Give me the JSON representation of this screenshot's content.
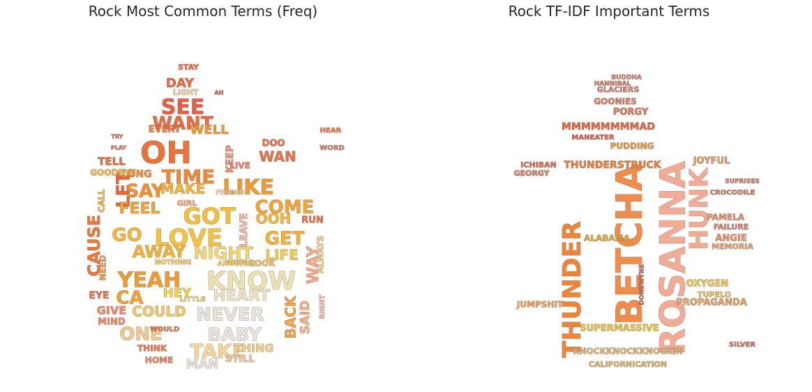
{
  "panels": [
    {
      "title": "Rock Most Common Terms (Freq)",
      "words": [
        {
          "t": "OH",
          "c": "#e8743a"
        },
        {
          "t": "SEE",
          "c": "#e85d46"
        },
        {
          "t": "WANT",
          "c": "#ea6b3f"
        },
        {
          "t": "DAY",
          "c": "#e66a44"
        },
        {
          "t": "TIME",
          "c": "#ee8a36"
        },
        {
          "t": "LIKE",
          "c": "#ef9a33"
        },
        {
          "t": "GOT",
          "c": "#f3bf3a"
        },
        {
          "t": "LOVE",
          "c": "#f4c23e"
        },
        {
          "t": "COME",
          "c": "#f2a534"
        },
        {
          "t": "KNOW",
          "c": "#ede0b0"
        },
        {
          "t": "YEAH",
          "c": "#ee9a35"
        },
        {
          "t": "NEVER",
          "c": "#e9e4da"
        },
        {
          "t": "BABY",
          "c": "#e8e4dc"
        },
        {
          "t": "TAKE",
          "c": "#f3d79a"
        },
        {
          "t": "CAUSE",
          "c": "#e97a3b"
        },
        {
          "t": "GET",
          "c": "#f3b13a"
        },
        {
          "t": "WAY",
          "c": "#f2a98b"
        },
        {
          "t": "BACK",
          "c": "#eea34a"
        },
        {
          "t": "SAID",
          "c": "#eeb28a"
        },
        {
          "t": "ONE",
          "c": "#f0c98d"
        },
        {
          "t": "COULD",
          "c": "#f2c76a"
        },
        {
          "t": "GIVE",
          "c": "#ec8a6a"
        },
        {
          "t": "LET",
          "c": "#e8663f"
        },
        {
          "t": "SAY",
          "c": "#f09234"
        },
        {
          "t": "FEEL",
          "c": "#f0a336"
        },
        {
          "t": "MAKE",
          "c": "#f2b23a"
        },
        {
          "t": "WAN",
          "c": "#e67447"
        },
        {
          "t": "NIGHT",
          "c": "#f3d66a"
        },
        {
          "t": "HEART",
          "c": "#ede2c4"
        },
        {
          "t": "LIFE",
          "c": "#f4c94f"
        },
        {
          "t": "OOH",
          "c": "#f2b43c"
        },
        {
          "t": "TELL",
          "c": "#e8703f"
        },
        {
          "t": "WELL",
          "c": "#ee9a35"
        },
        {
          "t": "EVERY",
          "c": "#ec7a3c"
        },
        {
          "t": "MAN",
          "c": "#e8e3da"
        },
        {
          "t": "GO",
          "c": "#f3b83a"
        },
        {
          "t": "AWAY",
          "c": "#f1b23a"
        },
        {
          "t": "HEY",
          "c": "#f4d04a"
        },
        {
          "t": "CA",
          "c": "#f0a234"
        },
        {
          "t": "THING",
          "c": "#f2cf84"
        },
        {
          "t": "STILL",
          "c": "#efc8a0"
        },
        {
          "t": "RUN",
          "c": "#eb6f3e"
        },
        {
          "t": "EYE",
          "c": "#eb6f48"
        },
        {
          "t": "MIND",
          "c": "#eb8a68"
        },
        {
          "t": "NEED",
          "c": "#f09a50"
        },
        {
          "t": "LONG",
          "c": "#ec8a3a"
        },
        {
          "t": "DOO",
          "c": "#e8704a"
        },
        {
          "t": "STAY",
          "c": "#e8703f"
        },
        {
          "t": "KEEP",
          "c": "#ec8c70"
        },
        {
          "t": "THINK",
          "c": "#ea7a50"
        },
        {
          "t": "LOOK",
          "c": "#efb86a"
        },
        {
          "t": "ALWAYS",
          "c": "#f0d08a"
        },
        {
          "t": "RIGHT",
          "c": "#f2b6a0"
        },
        {
          "t": "LEAVE",
          "c": "#f1b4a0"
        },
        {
          "t": "GIRL",
          "c": "#f0a878"
        },
        {
          "t": "CALL",
          "c": "#f2b444"
        },
        {
          "t": "HOME",
          "c": "#ec8060"
        },
        {
          "t": "LIGHT",
          "c": "#f1d3a0"
        },
        {
          "t": "WOULD",
          "c": "#e87447"
        },
        {
          "t": "NOTHING",
          "c": "#f3c860"
        },
        {
          "t": "WORLD",
          "c": "#f2c65a"
        },
        {
          "t": "AROUND",
          "c": "#f2d27a"
        },
        {
          "t": "LITTLE",
          "c": "#f2d27a"
        },
        {
          "t": "FRIEND",
          "c": "#efd9b0"
        },
        {
          "t": "GOODBYE",
          "c": "#f2b444"
        },
        {
          "t": "LIVE",
          "c": "#eb8462"
        },
        {
          "t": "HEAR",
          "c": "#e97650"
        },
        {
          "t": "WORD",
          "c": "#d67a6c"
        },
        {
          "t": "AH",
          "c": "#d06a5a"
        },
        {
          "t": "TRY",
          "c": "#cf7a6c"
        },
        {
          "t": "PLAY",
          "c": "#cf7a6c"
        },
        {
          "t": "STOP",
          "c": "#d28070"
        }
      ]
    },
    {
      "title": "Rock TF-IDF Important Terms",
      "words": [
        {
          "t": "ROSANNA",
          "c": "#f2ac96"
        },
        {
          "t": "BETCHA",
          "c": "#f08d4a"
        },
        {
          "t": "THUNDER",
          "c": "#ee8437"
        },
        {
          "t": "HUNK",
          "c": "#f2ac96"
        },
        {
          "t": "THUNDERSTRUCK",
          "c": "#ec7c3e"
        },
        {
          "t": "MMMMMMMMAD",
          "c": "#e06a46"
        },
        {
          "t": "KNOCKKNOCKKNOCKIN",
          "c": "#d9b27a"
        },
        {
          "t": "SUPERMASSIVE",
          "c": "#e6c044"
        },
        {
          "t": "CALIFORNICATION",
          "c": "#d6b26a"
        },
        {
          "t": "JOYFUL",
          "c": "#e59a6a"
        },
        {
          "t": "OXYGEN",
          "c": "#e8c250"
        },
        {
          "t": "ANGIE",
          "c": "#e4926a"
        },
        {
          "t": "MEMORIA",
          "c": "#e2a070"
        },
        {
          "t": "JUMPSHIT",
          "c": "#e6a060"
        },
        {
          "t": "PROPAGANDA",
          "c": "#e0a264"
        },
        {
          "t": "PAMELA",
          "c": "#de9070"
        },
        {
          "t": "FAILURE",
          "c": "#d88070"
        },
        {
          "t": "PORGY",
          "c": "#d87a60"
        },
        {
          "t": "GOONIES",
          "c": "#d47a68"
        },
        {
          "t": "GLACIERS",
          "c": "#d08070"
        },
        {
          "t": "PUDDING",
          "c": "#e29a4a"
        },
        {
          "t": "MANEATER",
          "c": "#d06a50"
        },
        {
          "t": "CROCODILE",
          "c": "#cf7a68"
        },
        {
          "t": "SUPRISES",
          "c": "#cf7a6c"
        },
        {
          "t": "ALABAMA",
          "c": "#e0a840"
        },
        {
          "t": "TUPELO",
          "c": "#e6be66"
        },
        {
          "t": "GEORGY",
          "c": "#d87a5c"
        },
        {
          "t": "ICHIBAN",
          "c": "#d86c54"
        },
        {
          "t": "DONEWYNE",
          "c": "#c86a5a"
        },
        {
          "t": "BUDDHA",
          "c": "#d48070"
        },
        {
          "t": "HANNIBAL",
          "c": "#cf7a6c"
        },
        {
          "t": "SILVER",
          "c": "#cc7868"
        }
      ]
    }
  ]
}
